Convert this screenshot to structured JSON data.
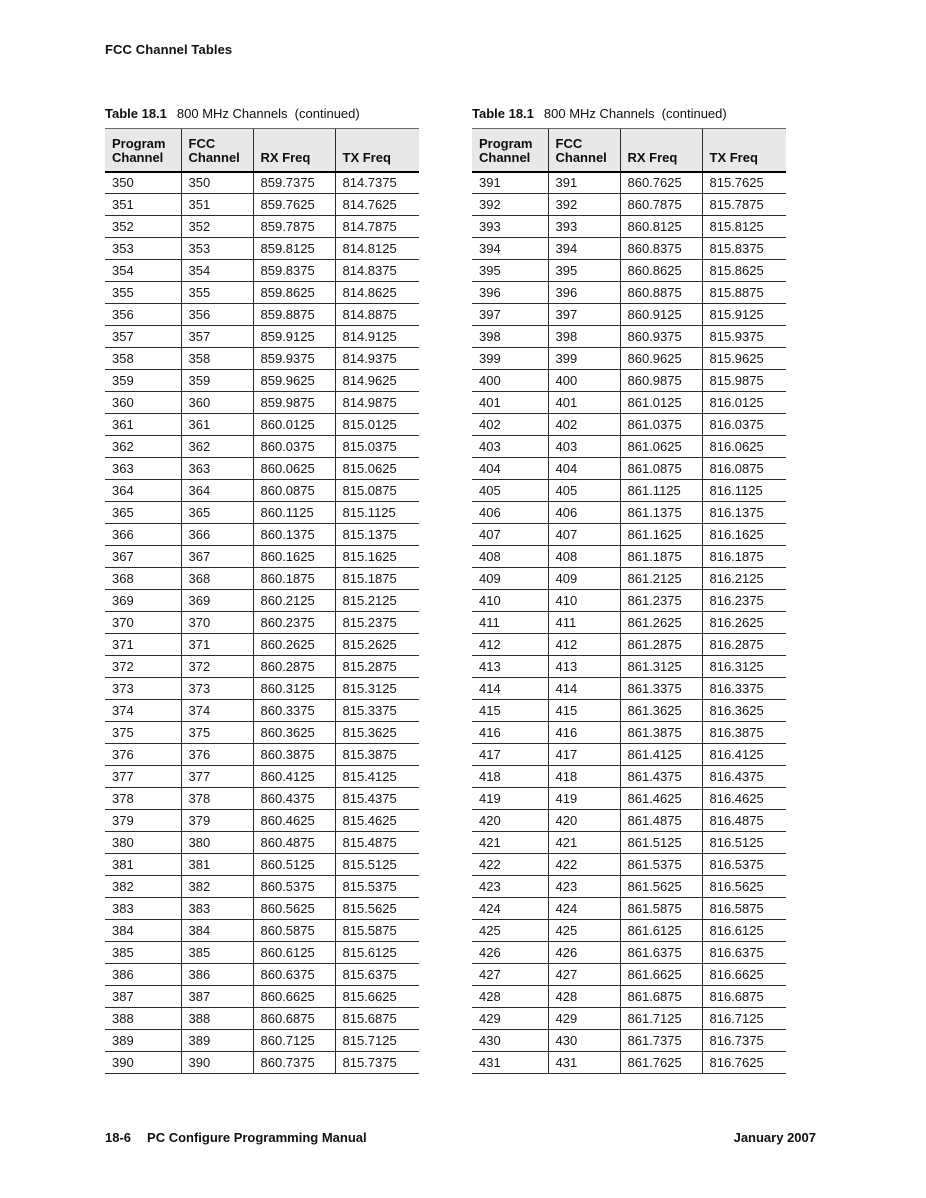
{
  "page": {
    "header": "FCC Channel Tables",
    "footer": {
      "page_number": "18-6",
      "manual_title": "PC Configure Programming Manual",
      "date": "January 2007"
    }
  },
  "colors": {
    "header_cell_bg": "#e8e8e6",
    "rule": "#2c2c2c",
    "text": "#161616"
  },
  "tables": [
    {
      "caption_label": "Table 18.1",
      "caption_text": "800 MHz Channels  (continued)",
      "columns": [
        "Program Channel",
        "FCC Channel",
        "RX Freq",
        "TX Freq"
      ],
      "rows": [
        [
          "350",
          "350",
          "859.7375",
          "814.7375"
        ],
        [
          "351",
          "351",
          "859.7625",
          "814.7625"
        ],
        [
          "352",
          "352",
          "859.7875",
          "814.7875"
        ],
        [
          "353",
          "353",
          "859.8125",
          "814.8125"
        ],
        [
          "354",
          "354",
          "859.8375",
          "814.8375"
        ],
        [
          "355",
          "355",
          "859.8625",
          "814.8625"
        ],
        [
          "356",
          "356",
          "859.8875",
          "814.8875"
        ],
        [
          "357",
          "357",
          "859.9125",
          "814.9125"
        ],
        [
          "358",
          "358",
          "859.9375",
          "814.9375"
        ],
        [
          "359",
          "359",
          "859.9625",
          "814.9625"
        ],
        [
          "360",
          "360",
          "859.9875",
          "814.9875"
        ],
        [
          "361",
          "361",
          "860.0125",
          "815.0125"
        ],
        [
          "362",
          "362",
          "860.0375",
          "815.0375"
        ],
        [
          "363",
          "363",
          "860.0625",
          "815.0625"
        ],
        [
          "364",
          "364",
          "860.0875",
          "815.0875"
        ],
        [
          "365",
          "365",
          "860.1125",
          "815.1125"
        ],
        [
          "366",
          "366",
          "860.1375",
          "815.1375"
        ],
        [
          "367",
          "367",
          "860.1625",
          "815.1625"
        ],
        [
          "368",
          "368",
          "860.1875",
          "815.1875"
        ],
        [
          "369",
          "369",
          "860.2125",
          "815.2125"
        ],
        [
          "370",
          "370",
          "860.2375",
          "815.2375"
        ],
        [
          "371",
          "371",
          "860.2625",
          "815.2625"
        ],
        [
          "372",
          "372",
          "860.2875",
          "815.2875"
        ],
        [
          "373",
          "373",
          "860.3125",
          "815.3125"
        ],
        [
          "374",
          "374",
          "860.3375",
          "815.3375"
        ],
        [
          "375",
          "375",
          "860.3625",
          "815.3625"
        ],
        [
          "376",
          "376",
          "860.3875",
          "815.3875"
        ],
        [
          "377",
          "377",
          "860.4125",
          "815.4125"
        ],
        [
          "378",
          "378",
          "860.4375",
          "815.4375"
        ],
        [
          "379",
          "379",
          "860.4625",
          "815.4625"
        ],
        [
          "380",
          "380",
          "860.4875",
          "815.4875"
        ],
        [
          "381",
          "381",
          "860.5125",
          "815.5125"
        ],
        [
          "382",
          "382",
          "860.5375",
          "815.5375"
        ],
        [
          "383",
          "383",
          "860.5625",
          "815.5625"
        ],
        [
          "384",
          "384",
          "860.5875",
          "815.5875"
        ],
        [
          "385",
          "385",
          "860.6125",
          "815.6125"
        ],
        [
          "386",
          "386",
          "860.6375",
          "815.6375"
        ],
        [
          "387",
          "387",
          "860.6625",
          "815.6625"
        ],
        [
          "388",
          "388",
          "860.6875",
          "815.6875"
        ],
        [
          "389",
          "389",
          "860.7125",
          "815.7125"
        ],
        [
          "390",
          "390",
          "860.7375",
          "815.7375"
        ]
      ]
    },
    {
      "caption_label": "Table 18.1",
      "caption_text": "800 MHz Channels  (continued)",
      "columns": [
        "Program Channel",
        "FCC Channel",
        "RX Freq",
        "TX Freq"
      ],
      "rows": [
        [
          "391",
          "391",
          "860.7625",
          "815.7625"
        ],
        [
          "392",
          "392",
          "860.7875",
          "815.7875"
        ],
        [
          "393",
          "393",
          "860.8125",
          "815.8125"
        ],
        [
          "394",
          "394",
          "860.8375",
          "815.8375"
        ],
        [
          "395",
          "395",
          "860.8625",
          "815.8625"
        ],
        [
          "396",
          "396",
          "860.8875",
          "815.8875"
        ],
        [
          "397",
          "397",
          "860.9125",
          "815.9125"
        ],
        [
          "398",
          "398",
          "860.9375",
          "815.9375"
        ],
        [
          "399",
          "399",
          "860.9625",
          "815.9625"
        ],
        [
          "400",
          "400",
          "860.9875",
          "815.9875"
        ],
        [
          "401",
          "401",
          "861.0125",
          "816.0125"
        ],
        [
          "402",
          "402",
          "861.0375",
          "816.0375"
        ],
        [
          "403",
          "403",
          "861.0625",
          "816.0625"
        ],
        [
          "404",
          "404",
          "861.0875",
          "816.0875"
        ],
        [
          "405",
          "405",
          "861.1125",
          "816.1125"
        ],
        [
          "406",
          "406",
          "861.1375",
          "816.1375"
        ],
        [
          "407",
          "407",
          "861.1625",
          "816.1625"
        ],
        [
          "408",
          "408",
          "861.1875",
          "816.1875"
        ],
        [
          "409",
          "409",
          "861.2125",
          "816.2125"
        ],
        [
          "410",
          "410",
          "861.2375",
          "816.2375"
        ],
        [
          "411",
          "411",
          "861.2625",
          "816.2625"
        ],
        [
          "412",
          "412",
          "861.2875",
          "816.2875"
        ],
        [
          "413",
          "413",
          "861.3125",
          "816.3125"
        ],
        [
          "414",
          "414",
          "861.3375",
          "816.3375"
        ],
        [
          "415",
          "415",
          "861.3625",
          "816.3625"
        ],
        [
          "416",
          "416",
          "861.3875",
          "816.3875"
        ],
        [
          "417",
          "417",
          "861.4125",
          "816.4125"
        ],
        [
          "418",
          "418",
          "861.4375",
          "816.4375"
        ],
        [
          "419",
          "419",
          "861.4625",
          "816.4625"
        ],
        [
          "420",
          "420",
          "861.4875",
          "816.4875"
        ],
        [
          "421",
          "421",
          "861.5125",
          "816.5125"
        ],
        [
          "422",
          "422",
          "861.5375",
          "816.5375"
        ],
        [
          "423",
          "423",
          "861.5625",
          "816.5625"
        ],
        [
          "424",
          "424",
          "861.5875",
          "816.5875"
        ],
        [
          "425",
          "425",
          "861.6125",
          "816.6125"
        ],
        [
          "426",
          "426",
          "861.6375",
          "816.6375"
        ],
        [
          "427",
          "427",
          "861.6625",
          "816.6625"
        ],
        [
          "428",
          "428",
          "861.6875",
          "816.6875"
        ],
        [
          "429",
          "429",
          "861.7125",
          "816.7125"
        ],
        [
          "430",
          "430",
          "861.7375",
          "816.7375"
        ],
        [
          "431",
          "431",
          "861.7625",
          "816.7625"
        ]
      ]
    }
  ]
}
